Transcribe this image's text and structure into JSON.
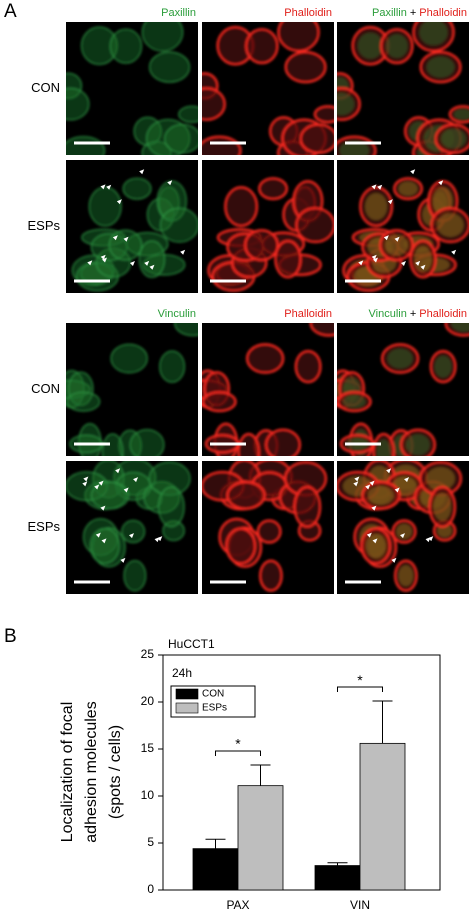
{
  "panel_labels": [
    "A",
    "B"
  ],
  "panel_a": {
    "blocks": [
      {
        "headers": [
          [
            "Paxillin"
          ],
          [
            "Phalloidin"
          ],
          [
            "Paxillin",
            "+",
            "Phalloidin"
          ]
        ],
        "rows": [
          "CON",
          "ESPs"
        ]
      },
      {
        "headers": [
          [
            "Vinculin"
          ],
          [
            "Phalloidin"
          ],
          [
            "Vinculin",
            "+",
            "Phalloidin"
          ]
        ],
        "rows": [
          "CON",
          "ESPs"
        ]
      }
    ]
  },
  "chart_data": {
    "type": "bar",
    "title": "HuCCT1",
    "subtitle": "24h",
    "ylabel": [
      "Localization of focal",
      "adhesion molecules",
      "(spots / cells)"
    ],
    "categories": [
      "PAX",
      "VIN"
    ],
    "series": [
      {
        "name": "CON",
        "color": "#000000",
        "values": [
          4.4,
          2.6
        ],
        "errors": [
          1.0,
          0.3
        ]
      },
      {
        "name": "ESPs",
        "color": "#bebebe",
        "values": [
          11.1,
          15.6
        ],
        "errors": [
          2.2,
          4.5
        ]
      }
    ],
    "annotations": [
      "*",
      "*"
    ],
    "ylim": [
      0,
      25
    ],
    "yticks": [
      0,
      5,
      10,
      15,
      20,
      25
    ]
  }
}
